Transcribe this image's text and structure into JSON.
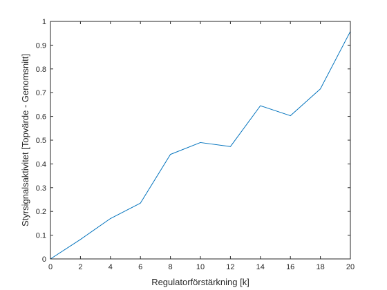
{
  "chart_data": {
    "type": "line",
    "title": "",
    "xlabel": "Regulatorförstärkning [k]",
    "ylabel": "Styrsignalsaktivitet [Topvärde - Genomsnitt]",
    "xlim": [
      0,
      20
    ],
    "ylim": [
      0,
      1
    ],
    "x_ticks": [
      "0",
      "2",
      "4",
      "6",
      "8",
      "10",
      "12",
      "14",
      "16",
      "18",
      "20"
    ],
    "y_ticks": [
      "0",
      "0.1",
      "0.2",
      "0.3",
      "0.4",
      "0.5",
      "0.6",
      "0.7",
      "0.8",
      "0.9",
      "1"
    ],
    "grid": false,
    "series": [
      {
        "color": "#0072BD",
        "x": [
          0,
          2,
          4,
          6,
          8,
          10,
          12,
          14,
          16,
          18,
          20
        ],
        "y": [
          0.0,
          0.082,
          0.17,
          0.235,
          0.44,
          0.49,
          0.473,
          0.645,
          0.603,
          0.716,
          0.958
        ]
      }
    ]
  }
}
